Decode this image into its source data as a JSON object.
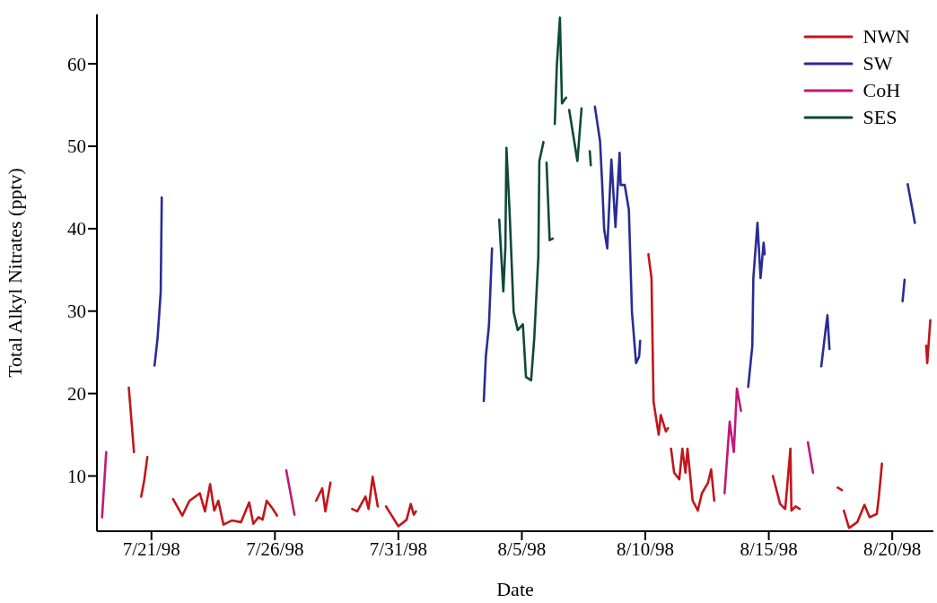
{
  "chart_data": {
    "type": "line",
    "xlabel": "Date",
    "ylabel": "Total Alkyl Nitrates (pptv)",
    "xlim": [
      "1998-07-18T19:00",
      "1998-08-21T16:00"
    ],
    "xticks": [
      {
        "value": "1998-07-21",
        "label": "7/21/98"
      },
      {
        "value": "1998-07-26",
        "label": "7/26/98"
      },
      {
        "value": "1998-07-31",
        "label": "7/31/98"
      },
      {
        "value": "1998-08-05",
        "label": "8/5/98"
      },
      {
        "value": "1998-08-10",
        "label": "8/10/98"
      },
      {
        "value": "1998-08-15",
        "label": "8/15/98"
      },
      {
        "value": "1998-08-20",
        "label": "8/20/98"
      }
    ],
    "ylim": [
      3.3,
      66
    ],
    "yticks": [
      10,
      20,
      30,
      40,
      50,
      60
    ],
    "legend": "top right",
    "line_style": "solid",
    "series": [
      {
        "name": "NWN",
        "color": "#c1161c",
        "x": [
          "1998-07-20T02:00",
          "1998-07-20T07:00",
          "1998-07-20T10:00",
          "1998-07-20T14:00",
          "1998-07-20T17:00",
          "1998-07-20T20:00",
          "1998-07-21T12:00",
          "1998-07-21T21:00",
          "1998-07-22T06:00",
          "1998-07-22T13:00",
          "1998-07-22T23:00",
          "1998-07-23T04:00",
          "1998-07-23T09:00",
          "1998-07-23T13:00",
          "1998-07-23T17:00",
          "1998-07-23T22:00",
          "1998-07-24T06:00",
          "1998-07-24T15:00",
          "1998-07-24T23:00",
          "1998-07-25T03:00",
          "1998-07-25T08:00",
          "1998-07-25T12:00",
          "1998-07-25T16:00",
          "1998-07-25T22:00",
          "1998-07-26T02:00",
          "1998-07-27T00:00",
          "1998-07-27T16:00",
          "1998-07-27T22:00",
          "1998-07-28T01:00",
          "1998-07-28T06:00",
          "1998-07-28T12:00",
          "1998-07-29T03:00",
          "1998-07-29T08:00",
          "1998-07-29T16:00",
          "1998-07-29T19:00",
          "1998-07-29T23:00",
          "1998-07-30T04:00",
          "1998-07-30T08:00",
          "1998-07-30T12:00",
          "1998-07-30T17:00",
          "1998-07-31T00:00",
          "1998-07-31T08:00",
          "1998-07-31T12:00",
          "1998-07-31T15:00",
          "1998-07-31T17:00",
          "1998-08-05T00:00",
          "1998-08-10T03:00",
          "1998-08-10T06:00",
          "1998-08-10T08:00",
          "1998-08-10T13:00",
          "1998-08-10T15:00",
          "1998-08-10T20:00",
          "1998-08-10T22:00",
          "1998-08-10T23:00",
          "1998-08-11T01:00",
          "1998-08-11T04:00",
          "1998-08-11T09:00",
          "1998-08-11T12:00",
          "1998-08-11T15:00",
          "1998-08-11T17:00",
          "1998-08-11T22:00",
          "1998-08-12T01:00",
          "1998-08-12T03:00",
          "1998-08-12T07:00",
          "1998-08-12T13:00",
          "1998-08-12T16:00",
          "1998-08-12T19:00",
          "1998-08-14T00:00",
          "1998-08-15T04:00",
          "1998-08-15T11:00",
          "1998-08-15T16:00",
          "1998-08-15T21:00",
          "1998-08-15T22:00",
          "1998-08-16T02:00",
          "1998-08-16T06:00",
          "1998-08-17T00:00",
          "1998-08-17T19:00",
          "1998-08-17T23:00",
          "1998-08-18T00:00",
          "1998-08-18T01:00",
          "1998-08-18T06:00",
          "1998-08-18T14:00",
          "1998-08-18T21:00",
          "1998-08-19T02:00",
          "1998-08-19T09:00",
          "1998-08-19T11:00",
          "1998-08-19T14:00",
          "1998-08-20T00:00",
          "1998-08-21T09:00",
          "1998-08-21T10:00",
          "1998-08-21T13:00"
        ],
        "values": [
          20.7,
          12.9,
          null,
          7.5,
          9.5,
          12.3,
          null,
          7.2,
          5.2,
          7.0,
          7.9,
          5.7,
          9.0,
          5.8,
          7.0,
          4.1,
          4.6,
          4.4,
          6.8,
          4.2,
          5.0,
          4.7,
          7.0,
          6.0,
          5.2,
          null,
          7.0,
          8.5,
          5.7,
          9.2,
          null,
          6.0,
          5.7,
          7.5,
          6.0,
          9.9,
          6.3,
          null,
          6.3,
          5.3,
          3.9,
          4.7,
          6.6,
          5.3,
          5.7,
          null,
          36.9,
          34.0,
          19.0,
          15.0,
          17.4,
          15.4,
          15.8,
          null,
          13.3,
          10.4,
          9.6,
          13.3,
          10.4,
          13.3,
          7.0,
          6.3,
          5.8,
          7.9,
          9.2,
          10.8,
          7.0,
          null,
          10.0,
          6.6,
          6.0,
          13.3,
          5.8,
          6.3,
          6.0,
          null,
          8.6,
          8.3,
          null,
          5.8,
          3.7,
          4.4,
          6.5,
          5.0,
          5.4,
          7.5,
          11.5,
          null,
          25.8,
          23.7,
          28.9
        ]
      },
      {
        "name": "SW",
        "color": "#2b2b96",
        "x": [
          "1998-07-21T03:00",
          "1998-07-21T06:00",
          "1998-07-21T09:00",
          "1998-07-21T10:00",
          "1998-07-25T00:00",
          "1998-08-03T11:00",
          "1998-08-03T13:00",
          "1998-08-03T16:00",
          "1998-08-03T19:00",
          "1998-08-06T00:00",
          "1998-08-07T23:00",
          "1998-08-08T04:00",
          "1998-08-08T06:00",
          "1998-08-08T08:00",
          "1998-08-08T11:00",
          "1998-08-08T15:00",
          "1998-08-08T19:00",
          "1998-08-08T23:00",
          "1998-08-09T00:00",
          "1998-08-09T04:00",
          "1998-08-09T08:00",
          "1998-08-09T11:00",
          "1998-08-09T15:00",
          "1998-08-09T18:00",
          "1998-08-09T19:00",
          "1998-08-12T00:00",
          "1998-08-14T04:00",
          "1998-08-14T08:00",
          "1998-08-14T09:00",
          "1998-08-14T13:00",
          "1998-08-14T16:00",
          "1998-08-14T19:00",
          "1998-08-14T20:00",
          "1998-08-16T00:00",
          "1998-08-17T03:00",
          "1998-08-17T07:00",
          "1998-08-17T09:00",
          "1998-08-17T11:00",
          "1998-08-19T00:00",
          "1998-08-20T10:00",
          "1998-08-20T12:00",
          "1998-08-20T13:00",
          "1998-08-20T15:00",
          "1998-08-20T22:00"
        ],
        "values": [
          23.4,
          26.8,
          32.3,
          43.8,
          null,
          19.1,
          24.5,
          28.2,
          37.6,
          null,
          54.8,
          50.6,
          45.6,
          39.9,
          37.6,
          48.4,
          40.2,
          49.2,
          45.3,
          45.3,
          42.3,
          29.9,
          23.7,
          24.5,
          26.4,
          null,
          20.8,
          25.8,
          34.0,
          40.7,
          34.0,
          38.3,
          36.9,
          null,
          23.3,
          27.5,
          29.5,
          25.4,
          null,
          31.2,
          33.8,
          null,
          45.4,
          40.7
        ]
      },
      {
        "name": "CoH",
        "color": "#c2187a",
        "x": [
          "1998-07-19T00:00",
          "1998-07-19T04:00",
          "1998-07-23T00:00",
          "1998-07-26T11:00",
          "1998-07-26T19:00",
          "1998-08-01T00:00",
          "1998-08-13T05:00",
          "1998-08-13T10:00",
          "1998-08-13T14:00",
          "1998-08-13T17:00",
          "1998-08-13T21:00",
          "1998-08-15T00:00",
          "1998-08-16T14:00",
          "1998-08-16T19:00"
        ],
        "values": [
          5.0,
          12.9,
          null,
          10.7,
          5.3,
          null,
          7.9,
          16.6,
          12.9,
          20.6,
          17.9,
          null,
          14.1,
          10.4
        ]
      },
      {
        "name": "SES",
        "color": "#0e4a38",
        "x": [
          "1998-08-04T02:00",
          "1998-08-04T06:00",
          "1998-08-04T08:00",
          "1998-08-04T09:00",
          "1998-08-04T12:00",
          "1998-08-04T16:00",
          "1998-08-04T20:00",
          "1998-08-05T01:00",
          "1998-08-05T04:00",
          "1998-08-05T09:00",
          "1998-08-05T12:00",
          "1998-08-05T16:00",
          "1998-08-05T17:00",
          "1998-08-05T21:00",
          "1998-08-05T22:00",
          "1998-08-06T00:00",
          "1998-08-06T03:00",
          "1998-08-06T06:00",
          "1998-08-06T07:00",
          "1998-08-06T08:00",
          "1998-08-06T10:00",
          "1998-08-06T13:00",
          "1998-08-06T15:00",
          "1998-08-06T19:00",
          "1998-08-06T20:00",
          "1998-08-06T22:00",
          "1998-08-07T06:00",
          "1998-08-07T10:00",
          "1998-08-07T14:00",
          "1998-08-07T18:00",
          "1998-08-07T19:00"
        ],
        "values": [
          41.1,
          32.4,
          37.8,
          49.8,
          42.3,
          29.9,
          27.7,
          28.4,
          22.0,
          21.6,
          26.6,
          36.6,
          48.2,
          50.5,
          null,
          48.0,
          38.6,
          38.8,
          null,
          52.7,
          59.8,
          65.6,
          55.2,
          55.9,
          null,
          54.4,
          48.2,
          54.6,
          null,
          49.4,
          47.7
        ]
      }
    ]
  }
}
